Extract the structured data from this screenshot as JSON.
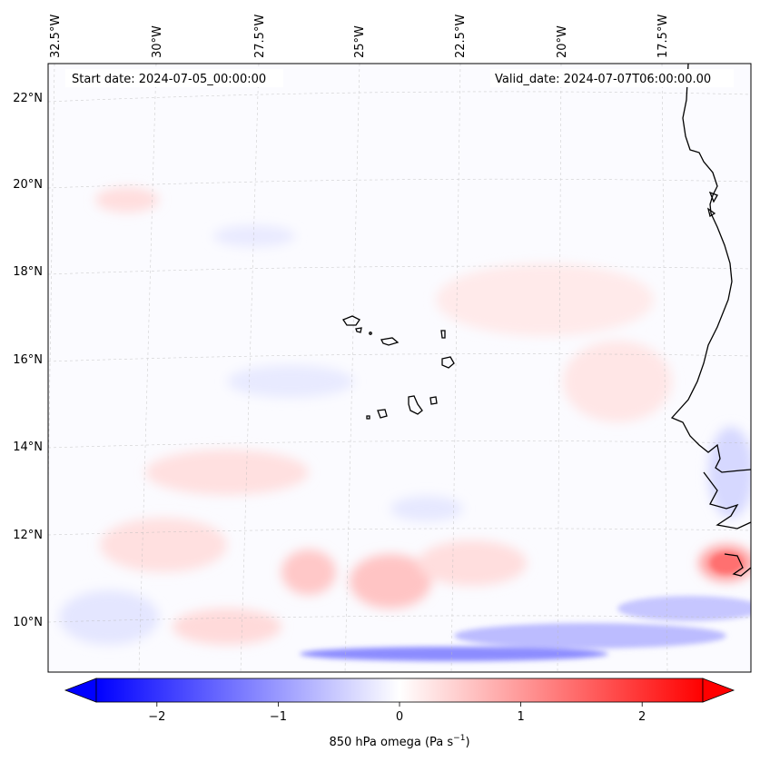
{
  "map": {
    "start_label": "Start date: 2024-07-05_00:00:00",
    "valid_label": "Valid_date: 2024-07-07T06:00:00.00",
    "longitude_labels": [
      "32.5°W",
      "30°W",
      "27.5°W",
      "25°W",
      "22.5°W",
      "20°W",
      "17.5°W"
    ],
    "latitude_labels": [
      "22°N",
      "20°N",
      "18°N",
      "16°N",
      "14°N",
      "12°N",
      "10°N"
    ],
    "extent": {
      "lon_min": -33.0,
      "lon_max": -15.3,
      "lat_min": 8.8,
      "lat_max": 22.8
    },
    "coastline_color": "#000000"
  },
  "colorbar": {
    "label": "850 hPa omega (Pa s",
    "label_sup": "−1",
    "label_tail": ")",
    "ticks": [
      "−2",
      "−1",
      "0",
      "1",
      "2"
    ],
    "tick_values": [
      -2,
      -1,
      0,
      1,
      2
    ],
    "vmin": -2.5,
    "vmax": 2.5,
    "negative_color": "#0000ff",
    "positive_color": "#ff0000",
    "extend": "both"
  }
}
